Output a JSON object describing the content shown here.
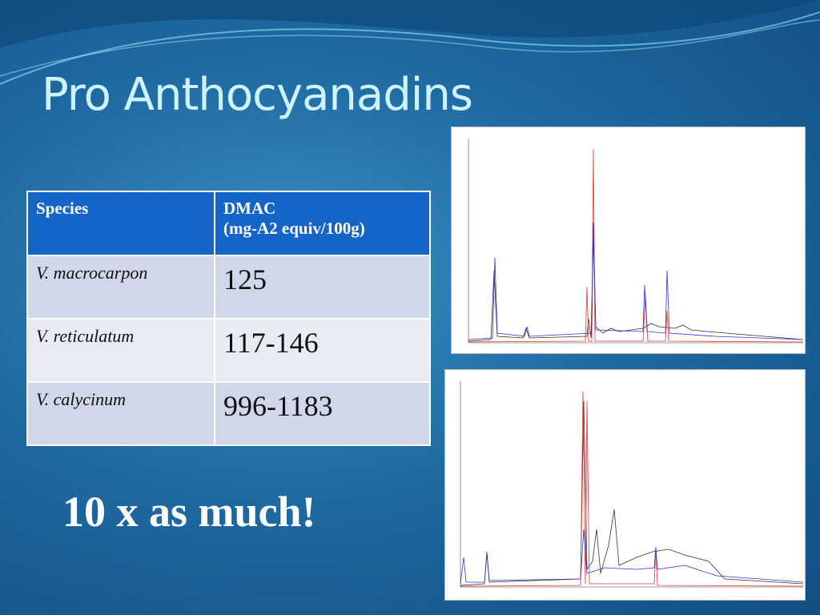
{
  "title": "Pro Anthocyanadins",
  "table": {
    "header": [
      "Species",
      "DMAC",
      "(mg-A2 equiv/100g)"
    ],
    "rows": [
      [
        "V. macrocarpon",
        "125"
      ],
      [
        "V. reticulatum",
        "117-146"
      ],
      [
        "V. calycinum",
        "996-1183"
      ]
    ]
  },
  "callout": "10 x as much!"
}
